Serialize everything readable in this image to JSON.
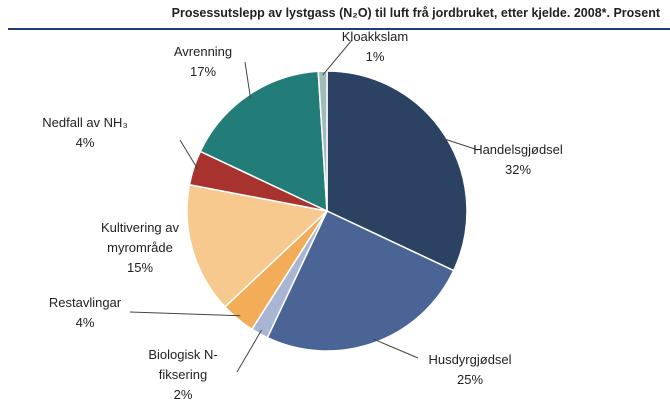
{
  "chart_data": {
    "type": "pie",
    "title": "Prosessutslepp av lystgass (N₂O) til luft frå jordbruket, etter kjelde. 2008*. Prosent",
    "categories": [
      "Handelsgjødsel",
      "Husdyrgjødsel",
      "Biologisk N-fiksering",
      "Restavlingar",
      "Kultivering av myrområde",
      "Nedfall av NH₃",
      "Avrenning",
      "Kloakkslam"
    ],
    "values": [
      32,
      25,
      2,
      4,
      15,
      4,
      17,
      1
    ],
    "value_labels": [
      "32%",
      "25%",
      "2%",
      "4%",
      "15%",
      "4%",
      "17%",
      "1%"
    ],
    "colors": [
      "#2c4262",
      "#4a6595",
      "#a8b6d4",
      "#f3ad59",
      "#f7c98e",
      "#a8322e",
      "#227c77",
      "#a0bcb9"
    ]
  }
}
